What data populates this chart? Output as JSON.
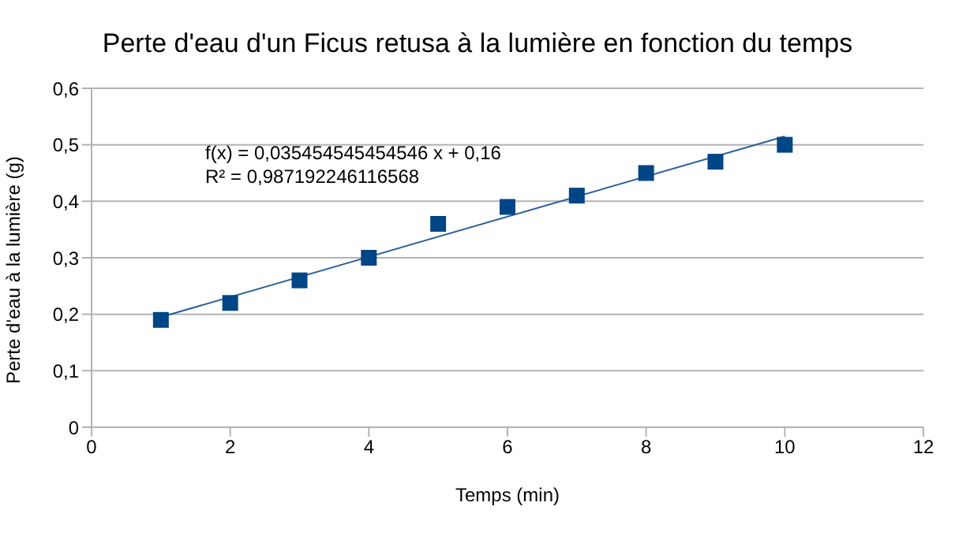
{
  "chart_data": {
    "type": "scatter",
    "title": "Perte d'eau d'un Ficus retusa à la lumière en fonction du temps",
    "xlabel": "Temps (min)",
    "ylabel": "Perte d'eau à la lumière (g)",
    "annotations": [
      "f(x) = 0,035454545454546 x + 0,16",
      "R² = 0,987192246116568"
    ],
    "x": [
      1,
      2,
      3,
      4,
      5,
      6,
      7,
      8,
      9,
      10
    ],
    "series": [
      {
        "color": "#004586",
        "values": [
          0.19,
          0.22,
          0.26,
          0.3,
          0.36,
          0.39,
          0.41,
          0.45,
          0.47,
          0.5
        ]
      },
      {
        "type": "line",
        "color": "#2a6099",
        "marker": "none",
        "x": [
          1,
          10
        ],
        "values": [
          0.195,
          0.515
        ]
      }
    ],
    "xlim": [
      0,
      12
    ],
    "xticks": [
      0,
      2,
      4,
      6,
      8,
      10,
      12
    ],
    "ylim": [
      0,
      0.6
    ],
    "yticks": [
      {
        "value": 0,
        "label": "0"
      },
      {
        "value": 0.1,
        "label": "0,1"
      },
      {
        "value": 0.2,
        "label": "0,2"
      },
      {
        "value": 0.3,
        "label": "0,3"
      },
      {
        "value": 0.4,
        "label": "0,4"
      },
      {
        "value": 0.5,
        "label": "0,5"
      },
      {
        "value": 0.6,
        "label": "0,6"
      }
    ],
    "grid": "y",
    "marker": "square",
    "legend": false
  }
}
